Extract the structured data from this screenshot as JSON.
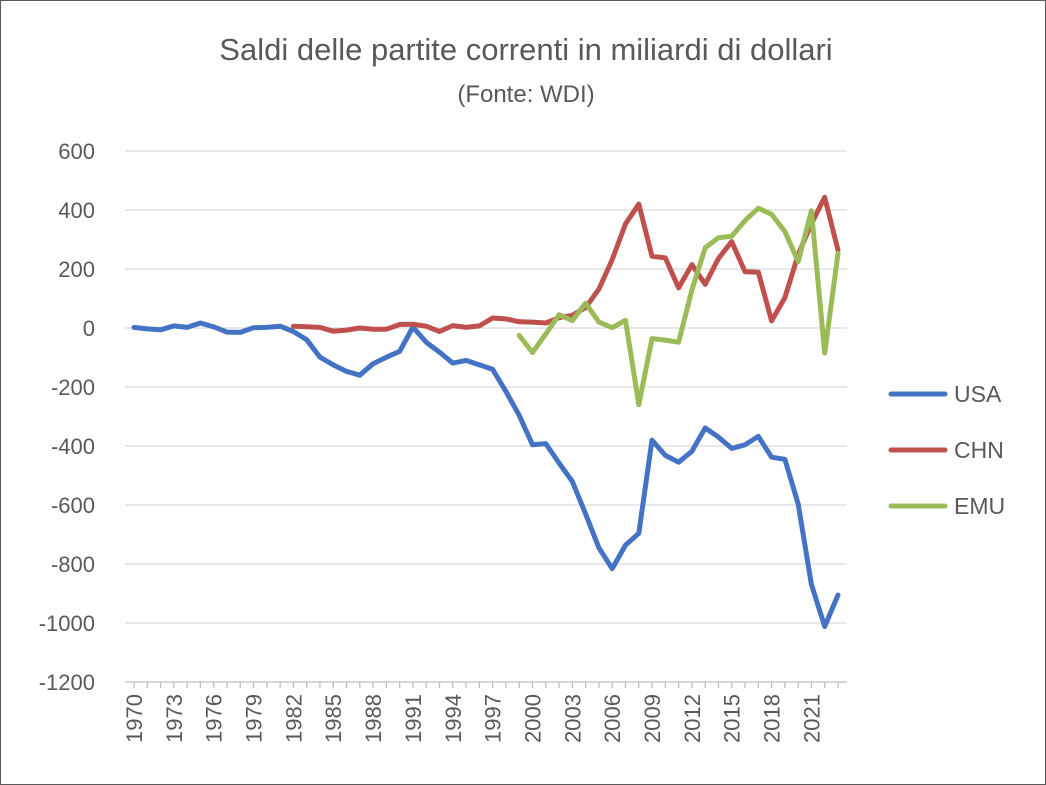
{
  "chart_data": {
    "type": "line",
    "title": "Saldi delle partite correnti in miliardi di dollari",
    "subtitle": "(Fonte: WDI)",
    "xlabel": "",
    "ylabel": "",
    "ylim": [
      -1200,
      600
    ],
    "y_ticks": [
      600,
      400,
      200,
      0,
      -200,
      -400,
      -600,
      -800,
      -1000,
      -1200
    ],
    "y_tick_labels": [
      "600",
      "400",
      "200",
      "0",
      "-200",
      "-400",
      "-600",
      "-800",
      "-1000",
      "-1200"
    ],
    "x_tick_labels": [
      "1970",
      "1973",
      "1976",
      "1979",
      "1982",
      "1985",
      "1988",
      "1991",
      "1994",
      "1997",
      "2000",
      "2003",
      "2006",
      "2009",
      "2012",
      "2015",
      "2018",
      "2021"
    ],
    "grid": true,
    "legend_position": "right",
    "x": [
      1970,
      1971,
      1972,
      1973,
      1974,
      1975,
      1976,
      1977,
      1978,
      1979,
      1980,
      1981,
      1982,
      1983,
      1984,
      1985,
      1986,
      1987,
      1988,
      1989,
      1990,
      1991,
      1992,
      1993,
      1994,
      1995,
      1996,
      1997,
      1998,
      1999,
      2000,
      2001,
      2002,
      2003,
      2004,
      2005,
      2006,
      2007,
      2008,
      2009,
      2010,
      2011,
      2012,
      2013,
      2014,
      2015,
      2016,
      2017,
      2018,
      2019,
      2020,
      2021,
      2022,
      2023
    ],
    "series": [
      {
        "name": "USA",
        "color": "#4472c4",
        "values": [
          2,
          -3,
          -6,
          7,
          2,
          17,
          4,
          -14,
          -15,
          1,
          2,
          6,
          -12,
          -40,
          -99,
          -125,
          -147,
          -160,
          -121,
          -99,
          -79,
          3,
          -48,
          -82,
          -119,
          -110,
          -125,
          -140,
          -215,
          -296,
          -396,
          -392,
          -458,
          -520,
          -630,
          -745,
          -816,
          -736,
          -696,
          -380,
          -432,
          -455,
          -418,
          -339,
          -370,
          -408,
          -396,
          -367,
          -438,
          -445,
          -597,
          -869,
          -1012,
          -905
        ]
      },
      {
        "name": "CHN",
        "color": "#c0504d",
        "values": [
          null,
          null,
          null,
          null,
          null,
          null,
          null,
          null,
          null,
          null,
          null,
          null,
          6,
          4,
          2,
          -11,
          -7,
          0,
          -4,
          -4,
          12,
          13,
          6,
          -12,
          8,
          2,
          7,
          34,
          31,
          21,
          20,
          17,
          35,
          43,
          69,
          132,
          232,
          353,
          420,
          243,
          238,
          136,
          215,
          148,
          236,
          293,
          191,
          189,
          24,
          103,
          249,
          353,
          443,
          264
        ]
      },
      {
        "name": "EMU",
        "color": "#9bbb59",
        "values": [
          null,
          null,
          null,
          null,
          null,
          null,
          null,
          null,
          null,
          null,
          null,
          null,
          null,
          null,
          null,
          null,
          null,
          null,
          null,
          null,
          null,
          null,
          null,
          null,
          null,
          null,
          null,
          null,
          null,
          -25,
          -83,
          -20,
          45,
          25,
          84,
          20,
          1,
          26,
          -260,
          -36,
          -41,
          -48,
          129,
          272,
          306,
          311,
          364,
          406,
          385,
          327,
          225,
          397,
          -85,
          253
        ]
      }
    ]
  }
}
